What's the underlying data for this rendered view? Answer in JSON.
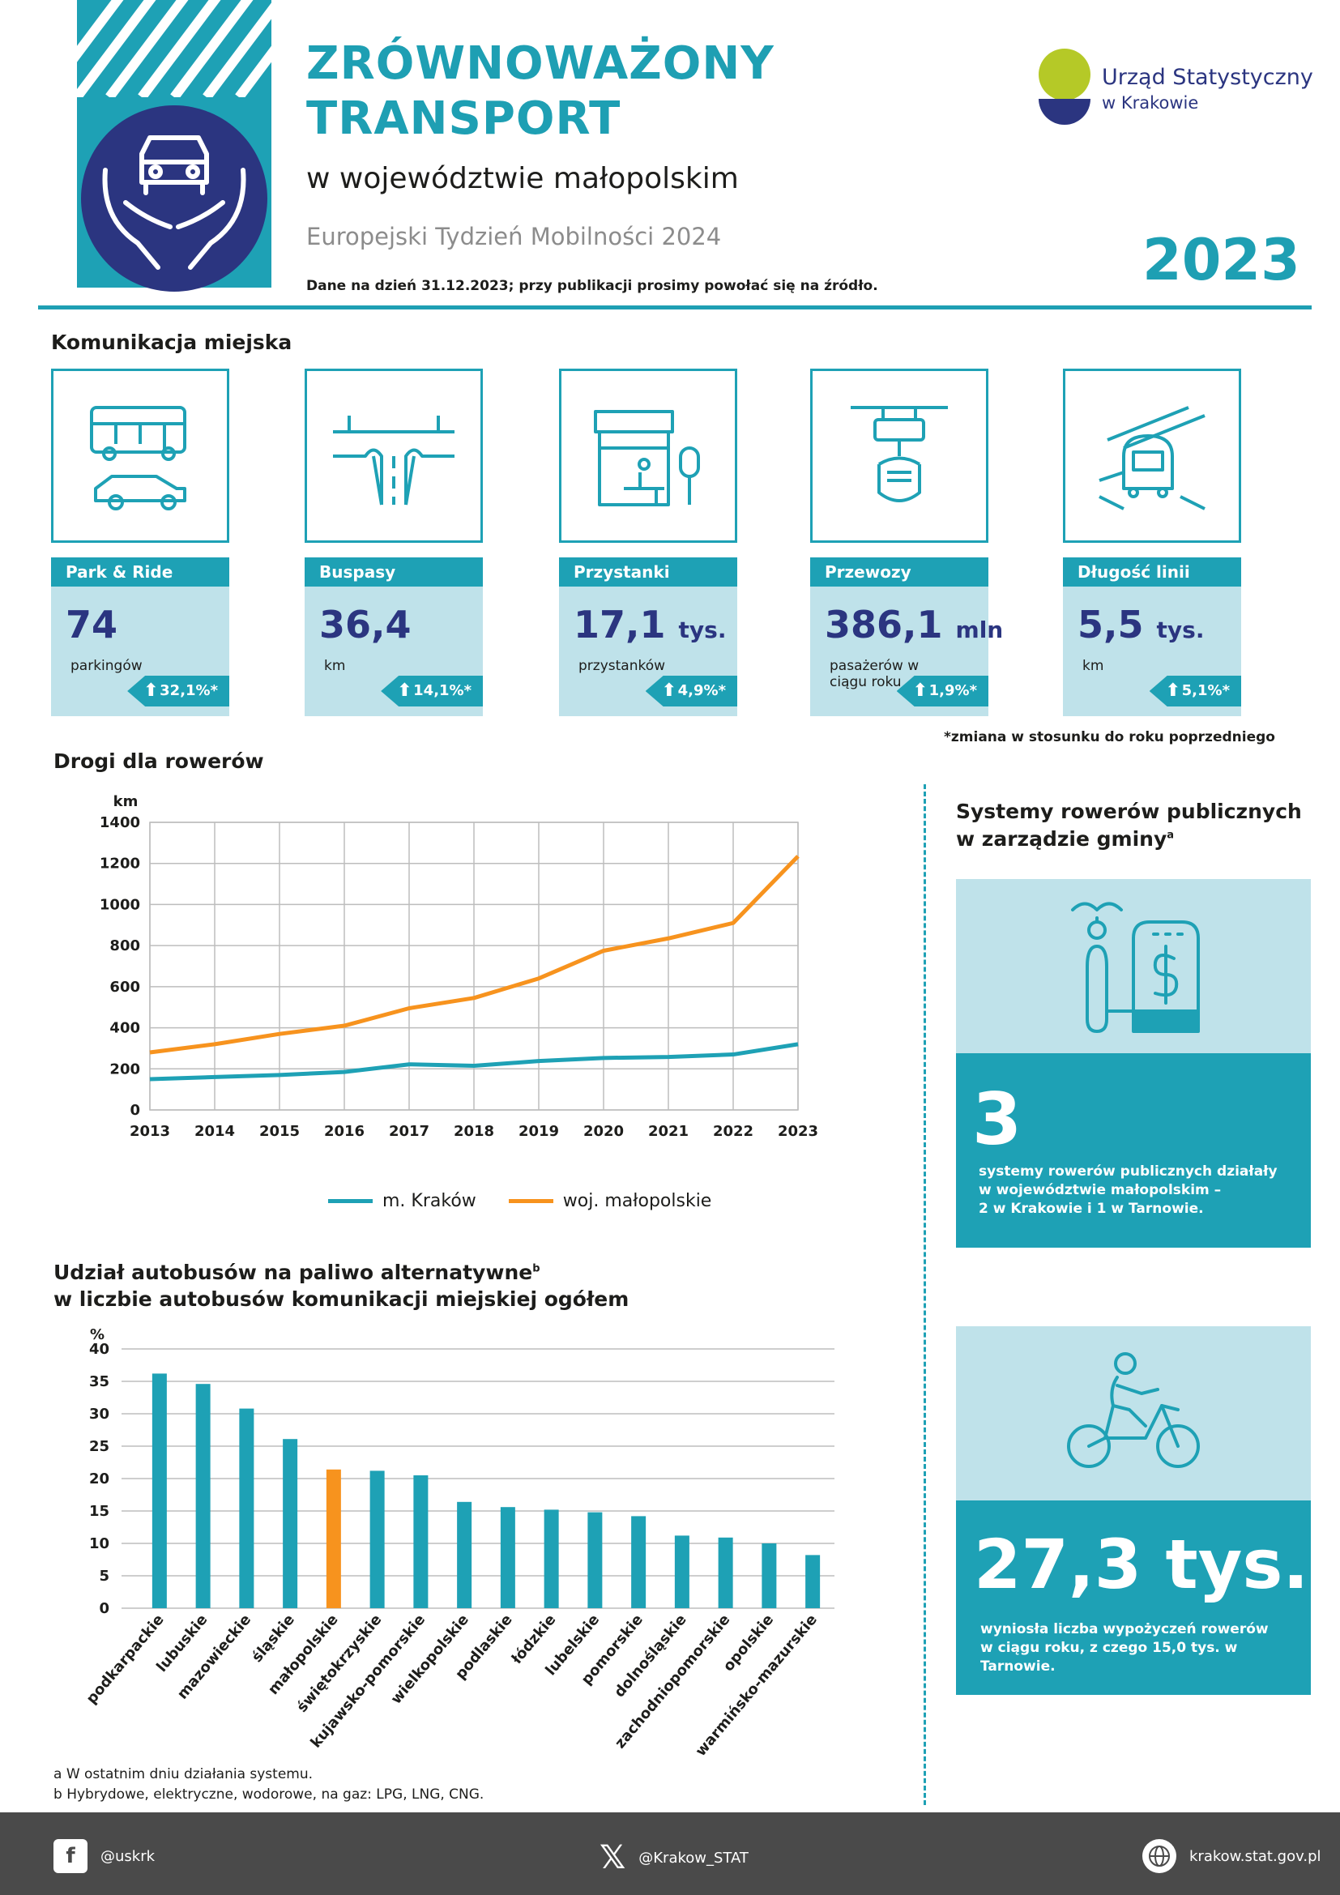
{
  "header": {
    "title_line1": "ZRÓWNOWAŻONY",
    "title_line2": "TRANSPORT",
    "subtitle": "w województwie małopolskim",
    "event": "Europejski Tydzień Mobilności 2024",
    "year": "2023",
    "date_note": "Dane na dzień 31.12.2023; przy publikacji prosimy powołać się na źródło.",
    "logo_line1": "Urząd Statystyczny",
    "logo_line2": "w Krakowie"
  },
  "colors": {
    "teal": "#1ea1b5",
    "navy": "#2b3580",
    "orange": "#f7931e",
    "light": "#bfe2ea",
    "lime": "#b5c927"
  },
  "urban": {
    "heading": "Komunikacja miejska",
    "cards": [
      {
        "icon": "bus-car-icon",
        "label": "Park & Ride",
        "value": "74",
        "unit": "",
        "desc": "parkingów",
        "change": "32,1%*"
      },
      {
        "icon": "bus-lane-icon",
        "label": "Buspasy",
        "value": "36,4",
        "unit": "",
        "desc": "km",
        "change": "14,1%*"
      },
      {
        "icon": "bus-stop-icon",
        "label": "Przystanki",
        "value": "17,1",
        "unit": "tys.",
        "desc": "przystanków",
        "change": "4,9%*"
      },
      {
        "icon": "passenger-handle-icon",
        "label": "Przewozy",
        "value": "386,1",
        "unit": "mln",
        "desc": "pasażerów w ciągu roku",
        "change": "1,9%*"
      },
      {
        "icon": "tram-icon",
        "label": "Długość linii",
        "value": "5,5",
        "unit": "tys.",
        "desc": "km",
        "change": "5,1%*"
      }
    ],
    "change_note": "*zmiana w stosunku do roku poprzedniego"
  },
  "bike_roads": {
    "heading": "Drogi dla rowerów",
    "legend": [
      "m. Kraków",
      "woj. małopolskie"
    ]
  },
  "alt_buses": {
    "heading_line1": "Udział autobusów na paliwo alternatywne",
    "heading_sup": "b",
    "heading_line2": "w liczbie autobusów komunikacji miejskiej ogółem"
  },
  "bike_systems": {
    "title_line1": "Systemy rowerów publicznych",
    "title_line2": "w zarządzie gminy",
    "title_sup": "a",
    "count": "3",
    "count_text_1": "systemy rowerów publicznych działały",
    "count_text_2": "w województwie małopolskim –",
    "count_text_3": "2 w Krakowie i 1 w Tarnowie.",
    "rentals": "27,3 tys.",
    "rentals_text_1": "wyniosła liczba wypożyczeń rowerów",
    "rentals_text_2": "w ciągu roku, z czego 15,0 tys. w Tarnowie."
  },
  "footnotes": {
    "a": "a W ostatnim dniu działania systemu.",
    "b": "b Hybrydowe, elektryczne, wodorowe, na gaz: LPG, LNG, CNG."
  },
  "footer": {
    "facebook": "@uskrk",
    "x": "@Krakow_STAT",
    "web": "krakow.stat.gov.pl"
  },
  "chart_data": [
    {
      "type": "line",
      "title": "Drogi dla rowerów",
      "ylabel": "km",
      "x": [
        "2013",
        "2014",
        "2015",
        "2016",
        "2017",
        "2018",
        "2019",
        "2020",
        "2021",
        "2022",
        "2023"
      ],
      "ylim": [
        0,
        1400
      ],
      "yticks": [
        0,
        200,
        400,
        600,
        800,
        1000,
        1200,
        1400
      ],
      "grid": true,
      "legend": "bottom",
      "series": [
        {
          "name": "m. Kraków",
          "color": "#1ea1b5",
          "values": [
            150,
            160,
            170,
            185,
            222,
            215,
            238,
            253,
            258,
            270,
            320
          ]
        },
        {
          "name": "woj. małopolskie",
          "color": "#f7931e",
          "values": [
            280,
            320,
            370,
            410,
            495,
            545,
            640,
            775,
            835,
            910,
            1235
          ]
        }
      ]
    },
    {
      "type": "bar",
      "title": "Udział autobusów na paliwo alternatywne w liczbie autobusów komunikacji miejskiej ogółem",
      "ylabel": "%",
      "ylim": [
        0,
        40
      ],
      "yticks": [
        0,
        5,
        10,
        15,
        20,
        25,
        30,
        35,
        40
      ],
      "grid": true,
      "highlight": "małopolskie",
      "categories": [
        "podkarpackie",
        "lubuskie",
        "mazowieckie",
        "śląskie",
        "małopolskie",
        "świętokrzyskie",
        "kujawsko-pomorskie",
        "wielkopolskie",
        "podlaskie",
        "łódzkie",
        "lubelskie",
        "pomorskie",
        "dolnośląskie",
        "zachodniopomorskie",
        "opolskie",
        "warmińsko-mazurskie"
      ],
      "values": [
        36.2,
        34.6,
        30.8,
        26.1,
        21.4,
        21.2,
        20.5,
        16.4,
        15.6,
        15.2,
        14.8,
        14.2,
        11.2,
        10.9,
        10.0,
        8.2
      ]
    }
  ]
}
